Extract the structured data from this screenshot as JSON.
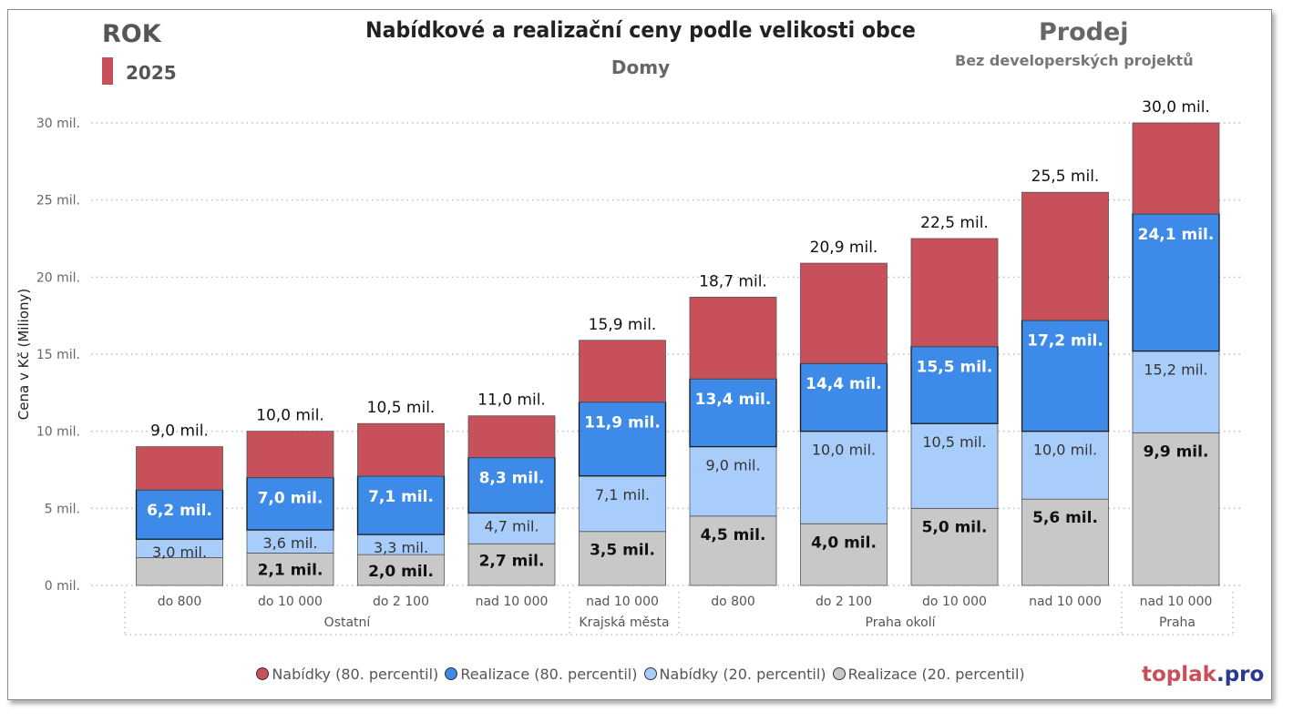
{
  "header": {
    "slicer_label": "ROK",
    "slicer_value": "2025",
    "title": "Nabídkové a realizační ceny podle velikosti obce",
    "subtitle": "Domy",
    "mode": "Prodej",
    "mode_sub": "Bez developerských projektů",
    "brand_part1": "toplak",
    "brand_part2": ".pro"
  },
  "colors": {
    "nabidky80": "#c8505a",
    "realizace80": "#3d8ae8",
    "nabidky20": "#a9cdfa",
    "realizace20": "#c8c8c8",
    "accent": "#c8505a"
  },
  "chart_data": {
    "type": "bar",
    "ylabel": "Cena v Kč (Miliony)",
    "ylim": [
      0,
      30
    ],
    "yticks": [
      "0 mil.",
      "5 mil.",
      "10 mil.",
      "15 mil.",
      "20 mil.",
      "25 mil.",
      "30 mil."
    ],
    "categories": [
      "do 800",
      "do 10 000",
      "do 2 100",
      "nad 10 000",
      "nad 10 000",
      "do 800",
      "do 2 100",
      "do 10 000",
      "nad 10 000",
      "nad 10 000"
    ],
    "groups": [
      {
        "label": "Ostatní",
        "count": 4
      },
      {
        "label": "Krajská města",
        "count": 1
      },
      {
        "label": "Praha okolí",
        "count": 4
      },
      {
        "label": "Praha",
        "count": 1
      }
    ],
    "series": [
      {
        "name": "Nabídky (80. percentil)",
        "values": [
          9.0,
          10.0,
          10.5,
          11.0,
          15.9,
          18.7,
          20.9,
          22.5,
          25.5,
          30.0
        ],
        "labels": [
          "9,0 mil.",
          "10,0 mil.",
          "10,5 mil.",
          "11,0 mil.",
          "15,9 mil.",
          "18,7 mil.",
          "20,9 mil.",
          "22,5 mil.",
          "25,5 mil.",
          "30,0 mil."
        ]
      },
      {
        "name": "Realizace (80. percentil)",
        "values": [
          6.2,
          7.0,
          7.1,
          8.3,
          11.9,
          13.4,
          14.4,
          15.5,
          17.2,
          24.1
        ],
        "labels": [
          "6,2 mil.",
          "7,0 mil.",
          "7,1 mil.",
          "8,3 mil.",
          "11,9 mil.",
          "13,4 mil.",
          "14,4 mil.",
          "15,5 mil.",
          "17,2 mil.",
          "24,1 mil."
        ]
      },
      {
        "name": "Nabídky (20. percentil)",
        "values": [
          3.0,
          3.6,
          3.3,
          4.7,
          7.1,
          9.0,
          10.0,
          10.5,
          10.0,
          15.2
        ],
        "labels": [
          "3,0 mil.",
          "3,6 mil.",
          "3,3 mil.",
          "4,7 mil.",
          "7,1 mil.",
          "9,0 mil.",
          "10,0 mil.",
          "10,5 mil.",
          "10,0 mil.",
          "15,2 mil."
        ]
      },
      {
        "name": "Realizace (20. percentil)",
        "values": [
          1.8,
          2.1,
          2.0,
          2.7,
          3.5,
          4.5,
          4.0,
          5.0,
          5.6,
          9.9
        ],
        "labels": [
          "",
          "2,1 mil.",
          "2,0 mil.",
          "2,7 mil.",
          "3,5 mil.",
          "4,5 mil.",
          "4,0 mil.",
          "5,0 mil.",
          "5,6 mil.",
          "9,9 mil."
        ]
      }
    ],
    "grid": true,
    "legend_position": "bottom"
  }
}
